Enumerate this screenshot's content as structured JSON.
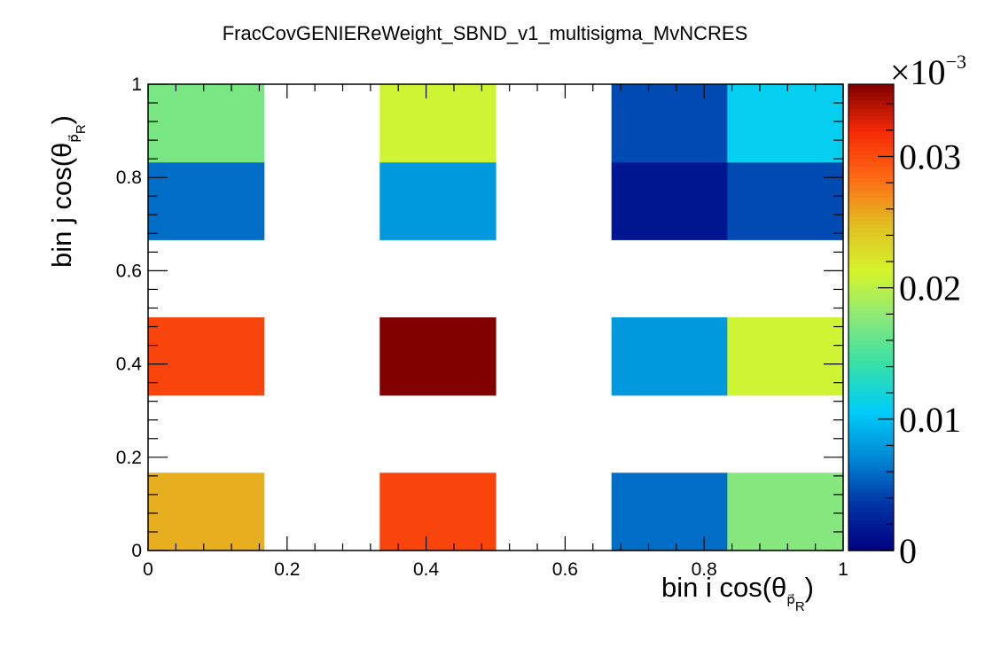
{
  "chart_data": {
    "type": "heatmap",
    "title": "FracCovGENIEReWeight_SBND_v1_multisigma_MvNCRES",
    "xlabel": {
      "prefix": "bin i cos(θ",
      "sub_symbol": "p⃗",
      "sub_index": "R",
      "suffix": ")"
    },
    "ylabel": {
      "prefix": "bin j cos(θ",
      "sub_symbol": "p⃗",
      "sub_index": "R",
      "suffix": ")"
    },
    "xlim": [
      0,
      1
    ],
    "ylim": [
      0,
      1
    ],
    "x_edges": [
      0,
      0.1667,
      0.3333,
      0.5,
      0.6667,
      0.8333,
      1
    ],
    "y_edges": [
      0,
      0.1667,
      0.3333,
      0.5,
      0.6667,
      0.8333,
      1
    ],
    "x_tick_labels": [
      "0",
      "0.2",
      "0.4",
      "0.6",
      "0.8",
      "1"
    ],
    "y_tick_labels": [
      "0",
      "0.2",
      "0.4",
      "0.6",
      "0.8",
      "1"
    ],
    "z_min": 0,
    "z_max": 0.0355,
    "z_exponent_label": "×10",
    "z_exponent_power": "−3",
    "z_tick_labels": [
      "0",
      "0.01",
      "0.02",
      "0.03"
    ],
    "z_tick_values": [
      0,
      0.01,
      0.02,
      0.03
    ],
    "cells": [
      {
        "xi": 0,
        "yi": 0,
        "value": 0.0255
      },
      {
        "xi": 2,
        "yi": 0,
        "value": 0.0305
      },
      {
        "xi": 4,
        "yi": 0,
        "value": 0.006
      },
      {
        "xi": 5,
        "yi": 0,
        "value": 0.0175
      },
      {
        "xi": 0,
        "yi": 2,
        "value": 0.0305
      },
      {
        "xi": 2,
        "yi": 2,
        "value": 0.0355
      },
      {
        "xi": 4,
        "yi": 2,
        "value": 0.008
      },
      {
        "xi": 5,
        "yi": 2,
        "value": 0.021
      },
      {
        "xi": 0,
        "yi": 4,
        "value": 0.006
      },
      {
        "xi": 2,
        "yi": 4,
        "value": 0.008
      },
      {
        "xi": 4,
        "yi": 4,
        "value": 0.0015
      },
      {
        "xi": 5,
        "yi": 4,
        "value": 0.0045
      },
      {
        "xi": 0,
        "yi": 5,
        "value": 0.017
      },
      {
        "xi": 2,
        "yi": 5,
        "value": 0.021
      },
      {
        "xi": 4,
        "yi": 5,
        "value": 0.0045
      },
      {
        "xi": 5,
        "yi": 5,
        "value": 0.011
      }
    ],
    "colormap": [
      "#000080",
      "#0033a5",
      "#0088d5",
      "#00cdf8",
      "#35e0a8",
      "#8be87a",
      "#d5f52c",
      "#e2be22",
      "#fe6a14",
      "#f62a05",
      "#800000"
    ],
    "grid": false,
    "legend": "colorbar-right"
  }
}
